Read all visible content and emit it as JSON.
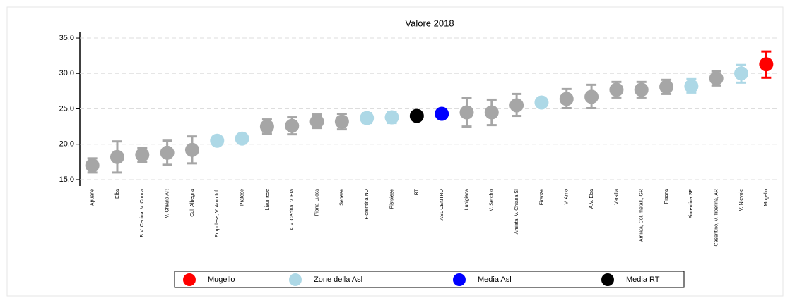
{
  "chart_data": {
    "type": "dot-errorbar",
    "title": "Valore 2018",
    "categories": [
      "Apuane",
      "Elba",
      "B.V. Cecina, V. Cornia",
      "V. Chiana AR",
      "Col. Albegna",
      "Empolese, V. Arno Inf.",
      "Pratese",
      "Livornese",
      "A.V. Cecina, V. Era",
      "Piana Lucca",
      "Senese",
      "Fiorentina NO",
      "Pistoiese",
      "RT",
      "ASL CENTRO",
      "Lunigiana",
      "V. Serchio",
      "Amiata, V. Chiana SI",
      "Firenze",
      "V. Arno",
      "A.V. Elsa",
      "Versilia",
      "Amiata, Col. metall., GR",
      "Pisana",
      "Fiorentina SE",
      "Casentino, V. Tiberina, AR",
      "V. Nievole",
      "Mugello"
    ],
    "values": [
      17.0,
      18.2,
      18.5,
      18.8,
      19.2,
      20.5,
      20.8,
      22.5,
      22.6,
      23.2,
      23.2,
      23.7,
      23.8,
      24.0,
      24.3,
      24.5,
      24.5,
      25.5,
      25.9,
      26.4,
      26.7,
      27.7,
      27.7,
      28.1,
      28.2,
      29.3,
      30.0,
      31.3
    ],
    "lower": [
      16.0,
      16.0,
      17.5,
      17.1,
      17.3,
      20.0,
      20.3,
      21.5,
      21.4,
      22.3,
      22.1,
      23.0,
      23.0,
      null,
      null,
      22.5,
      22.7,
      24.0,
      25.6,
      25.1,
      25.1,
      26.6,
      26.6,
      27.1,
      27.3,
      28.3,
      28.7,
      29.4
    ],
    "upper": [
      18.0,
      20.4,
      19.5,
      20.5,
      21.1,
      21.0,
      21.3,
      23.5,
      23.8,
      24.2,
      24.3,
      24.4,
      24.6,
      null,
      null,
      26.5,
      26.3,
      27.1,
      26.3,
      27.8,
      28.4,
      28.8,
      28.8,
      29.1,
      29.2,
      30.3,
      31.2,
      33.1
    ],
    "point_colors": [
      "#a6a6a6",
      "#a6a6a6",
      "#a6a6a6",
      "#a6a6a6",
      "#a6a6a6",
      "#add8e6",
      "#add8e6",
      "#a6a6a6",
      "#a6a6a6",
      "#a6a6a6",
      "#a6a6a6",
      "#add8e6",
      "#add8e6",
      "#000000",
      "#0000ff",
      "#a6a6a6",
      "#a6a6a6",
      "#a6a6a6",
      "#add8e6",
      "#a6a6a6",
      "#a6a6a6",
      "#a6a6a6",
      "#a6a6a6",
      "#a6a6a6",
      "#add8e6",
      "#a6a6a6",
      "#add8e6",
      "#ff0000"
    ],
    "legend": [
      {
        "name": "Mugello",
        "color": "#ff0000"
      },
      {
        "name": "Zone della Asl",
        "color": "#add8e6"
      },
      {
        "name": "Media Asl",
        "color": "#0000ff"
      },
      {
        "name": "Media RT",
        "color": "#000000"
      }
    ],
    "ylim": [
      14.1,
      35.9
    ],
    "yticks": [
      {
        "value": 15,
        "label": "15,0"
      },
      {
        "value": 20,
        "label": "20,0"
      },
      {
        "value": 25,
        "label": "25,0"
      },
      {
        "value": 30,
        "label": "30,0"
      },
      {
        "value": 35,
        "label": "35,0"
      }
    ],
    "grid": true
  }
}
